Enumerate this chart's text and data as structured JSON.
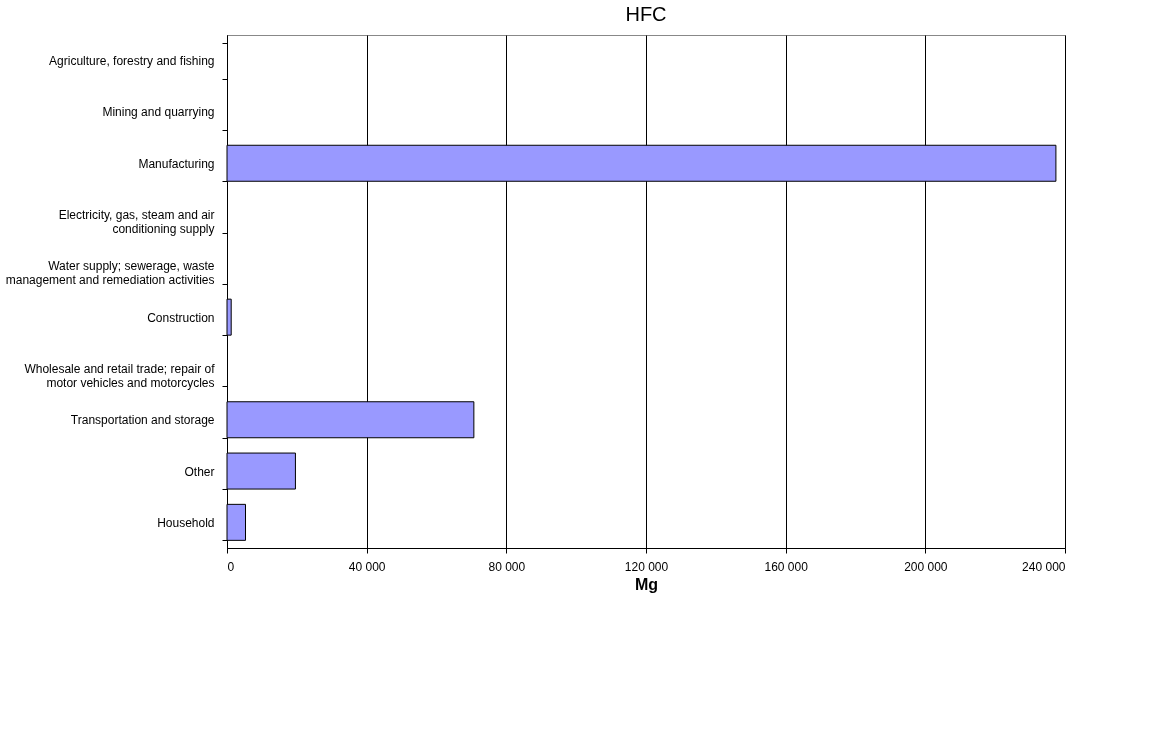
{
  "chart_data": {
    "type": "bar",
    "orientation": "horizontal",
    "title": "HFC",
    "xlabel": "Mg",
    "categories": [
      "Agriculture, forestry and fishing",
      "Mining and quarrying",
      "Manufacturing",
      "Electricity, gas, steam and air conditioning supply",
      "Water supply; sewerage, waste management and remediation activities",
      "Construction",
      "Wholesale and retail trade; repair of motor vehicles and motorcycles",
      "Transportation and storage",
      "Other",
      "Household"
    ],
    "values": [
      null,
      null,
      237400,
      null,
      null,
      1200,
      null,
      70700,
      19600,
      5300
    ],
    "color": "#9999ff",
    "xlim": [
      0,
      240000
    ],
    "xticks": [
      {
        "value": 0,
        "label": "0"
      },
      {
        "value": 40000,
        "label": "40 000"
      },
      {
        "value": 80000,
        "label": "80 000"
      },
      {
        "value": 120000,
        "label": "120 000"
      },
      {
        "value": 160000,
        "label": "160 000"
      },
      {
        "value": 200000,
        "label": "200 000"
      },
      {
        "value": 240000,
        "label": "240 000"
      }
    ],
    "grid": "x"
  }
}
